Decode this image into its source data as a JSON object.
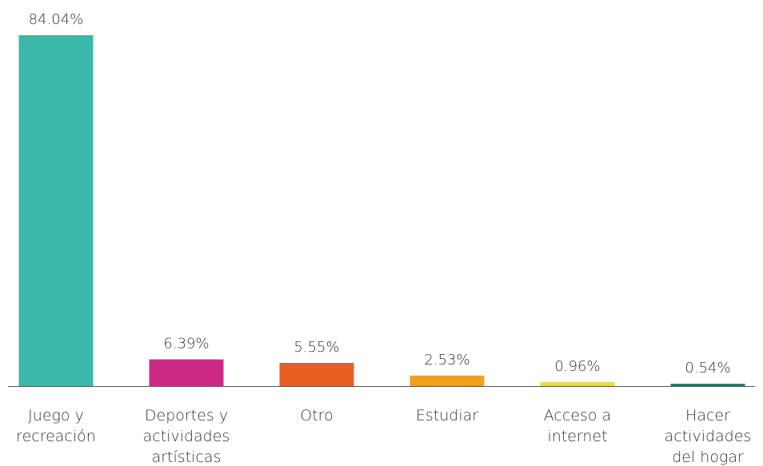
{
  "chart_data": {
    "type": "bar",
    "categories": [
      "Juego y\nrecreación",
      "Deportes y\nactividades\nartísticas",
      "Otro",
      "Estudiar",
      "Acceso a\ninternet",
      "Hacer\nactividades\ndel hogar"
    ],
    "values": [
      84.04,
      6.39,
      5.55,
      2.53,
      0.96,
      0.54
    ],
    "value_labels": [
      "84.04%",
      "6.39%",
      "5.55%",
      "2.53%",
      "0.96%",
      "0.54%"
    ],
    "colors": [
      "#3cb8a9",
      "#cc2a86",
      "#ea5e21",
      "#f2a11c",
      "#ebdd3a",
      "#137a6b"
    ],
    "ylim": [
      0,
      84.04
    ]
  }
}
